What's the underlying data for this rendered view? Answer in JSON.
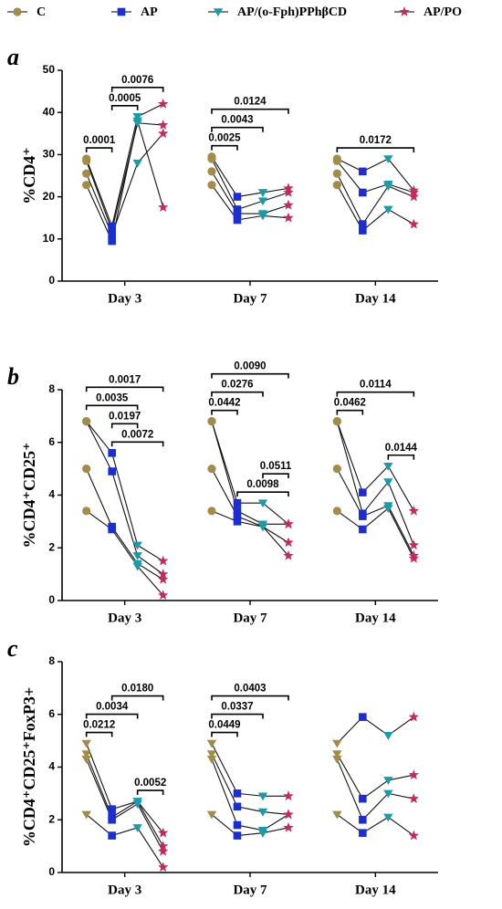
{
  "chart_data": [
    {
      "type": "dotplot",
      "panel_label": "a",
      "ylabel": "%CD4⁺",
      "categories": [
        "Day 3",
        "Day 7",
        "Day 14"
      ],
      "ylim": [
        0,
        50
      ],
      "yticks": [
        0,
        10,
        20,
        30,
        40,
        50
      ],
      "series": [
        {
          "name": "C",
          "color": "#a38b4a",
          "marker": "circle",
          "values": [
            [
              29,
              28.5,
              25.5,
              22.8
            ],
            [
              29.5,
              29,
              26,
              22.8
            ],
            [
              29,
              28.5,
              25.5,
              22.8
            ]
          ]
        },
        {
          "name": "AP",
          "color": "#1b2fd1",
          "marker": "square",
          "values": [
            [
              13,
              12,
              11,
              9.5
            ],
            [
              20,
              17,
              16,
              14.5
            ],
            [
              26,
              21,
              13.5,
              12
            ]
          ]
        },
        {
          "name": "AP/(o-Fph)PPhβCD",
          "color": "#1d9aa8",
          "marker": "triangle-down",
          "values": [
            [
              39,
              37.5,
              28,
              38
            ],
            [
              21,
              19,
              16,
              15.5
            ],
            [
              29,
              23,
              22.5,
              17
            ]
          ]
        },
        {
          "name": "AP/PO",
          "color": "#c42a5e",
          "marker": "star",
          "values": [
            [
              42,
              37,
              35,
              17.5
            ],
            [
              22,
              21,
              18,
              15
            ],
            [
              21.5,
              21,
              20,
              13.5
            ]
          ]
        }
      ],
      "annotations": [
        {
          "label": "0.0001",
          "category": "Day 3",
          "between": [
            "C",
            "AP"
          ]
        },
        {
          "label": "0.0005",
          "category": "Day 3",
          "between": [
            "AP",
            "AP/(o-Fph)PPhβCD"
          ]
        },
        {
          "label": "0.0076",
          "category": "Day 3",
          "between": [
            "AP",
            "AP/PO"
          ]
        },
        {
          "label": "0.0025",
          "category": "Day 7",
          "between": [
            "C",
            "AP"
          ]
        },
        {
          "label": "0.0043",
          "category": "Day 7",
          "between": [
            "C",
            "AP/(o-Fph)PPhβCD"
          ]
        },
        {
          "label": "0.0124",
          "category": "Day 7",
          "between": [
            "C",
            "AP/PO"
          ]
        },
        {
          "label": "0.0172",
          "category": "Day 14",
          "between": [
            "C",
            "AP/PO"
          ]
        }
      ]
    },
    {
      "type": "dotplot",
      "panel_label": "b",
      "ylabel": "%CD4⁺CD25⁺",
      "categories": [
        "Day 3",
        "Day 7",
        "Day 14"
      ],
      "ylim": [
        0,
        8
      ],
      "yticks": [
        0,
        2,
        4,
        6,
        8
      ],
      "series": [
        {
          "name": "C",
          "color": "#a38b4a",
          "marker": "circle",
          "values": [
            [
              6.8,
              6.8,
              5,
              3.4
            ],
            [
              6.8,
              6.8,
              5,
              3.4
            ],
            [
              6.8,
              6.8,
              5,
              3.4
            ]
          ]
        },
        {
          "name": "AP",
          "color": "#1b2fd1",
          "marker": "square",
          "values": [
            [
              5.6,
              4.9,
              2.8,
              2.7
            ],
            [
              3.7,
              3.4,
              3.2,
              3.0
            ],
            [
              4.1,
              3.3,
              3.2,
              2.7
            ]
          ]
        },
        {
          "name": "AP/(o-Fph)PPhβCD",
          "color": "#1d9aa8",
          "marker": "triangle-down",
          "values": [
            [
              2.1,
              1.7,
              1.4,
              1.3
            ],
            [
              3.7,
              2.9,
              2.8,
              2.8
            ],
            [
              5.1,
              4.5,
              3.6,
              3.5
            ]
          ]
        },
        {
          "name": "AP/PO",
          "color": "#c42a5e",
          "marker": "star",
          "values": [
            [
              1.5,
              1.0,
              0.8,
              0.2
            ],
            [
              2.9,
              2.9,
              2.2,
              1.7
            ],
            [
              3.4,
              2.1,
              1.7,
              1.6
            ]
          ]
        }
      ],
      "annotations": [
        {
          "label": "0.0072",
          "category": "Day 3",
          "between": [
            "AP",
            "AP/PO"
          ]
        },
        {
          "label": "0.0197",
          "category": "Day 3",
          "between": [
            "AP",
            "AP/(o-Fph)PPhβCD"
          ]
        },
        {
          "label": "0.0035",
          "category": "Day 3",
          "between": [
            "C",
            "AP/(o-Fph)PPhβCD"
          ]
        },
        {
          "label": "0.0017",
          "category": "Day 3",
          "between": [
            "C",
            "AP/PO"
          ]
        },
        {
          "label": "0.0098",
          "category": "Day 7",
          "between": [
            "AP",
            "AP/PO"
          ]
        },
        {
          "label": "0.0511",
          "category": "Day 7",
          "between": [
            "AP/(o-Fph)PPhβCD",
            "AP/PO"
          ]
        },
        {
          "label": "0.0442",
          "category": "Day 7",
          "between": [
            "C",
            "AP"
          ]
        },
        {
          "label": "0.0276",
          "category": "Day 7",
          "between": [
            "C",
            "AP/(o-Fph)PPhβCD"
          ]
        },
        {
          "label": "0.0090",
          "category": "Day 7",
          "between": [
            "C",
            "AP/PO"
          ]
        },
        {
          "label": "0.0144",
          "category": "Day 14",
          "between": [
            "AP/(o-Fph)PPhβCD",
            "AP/PO"
          ]
        },
        {
          "label": "0.0462",
          "category": "Day 14",
          "between": [
            "C",
            "AP"
          ]
        },
        {
          "label": "0.0114",
          "category": "Day 14",
          "between": [
            "C",
            "AP/PO"
          ]
        }
      ]
    },
    {
      "type": "dotplot",
      "panel_label": "c",
      "ylabel": "%CD4⁺CD25⁺FoxP3+",
      "categories": [
        "Day 3",
        "Day 7",
        "Day 14"
      ],
      "ylim": [
        0,
        8
      ],
      "yticks": [
        0,
        2,
        4,
        6,
        8
      ],
      "series": [
        {
          "name": "C",
          "color": "#a38b4a",
          "marker": "triangle-down",
          "values": [
            [
              4.9,
              4.5,
              4.3,
              2.2
            ],
            [
              4.9,
              4.5,
              4.3,
              2.2
            ],
            [
              4.9,
              4.5,
              4.3,
              2.2
            ]
          ]
        },
        {
          "name": "AP",
          "color": "#1b2fd1",
          "marker": "square",
          "values": [
            [
              2.4,
              2.1,
              2.0,
              1.4
            ],
            [
              3.0,
              2.5,
              1.8,
              1.4
            ],
            [
              5.9,
              2.8,
              2.0,
              1.5
            ]
          ]
        },
        {
          "name": "AP/(o-Fph)PPhβCD",
          "color": "#1d9aa8",
          "marker": "triangle-down",
          "values": [
            [
              2.7,
              2.7,
              2.6,
              1.7
            ],
            [
              2.9,
              2.3,
              1.6,
              1.5
            ],
            [
              5.2,
              3.5,
              3.0,
              2.1
            ]
          ]
        },
        {
          "name": "AP/PO",
          "color": "#c42a5e",
          "marker": "star",
          "values": [
            [
              1.5,
              1.0,
              0.8,
              0.2
            ],
            [
              2.9,
              2.2,
              2.2,
              1.7
            ],
            [
              5.9,
              3.7,
              2.8,
              1.4
            ]
          ]
        }
      ],
      "annotations": [
        {
          "label": "0.0052",
          "category": "Day 3",
          "between": [
            "AP/(o-Fph)PPhβCD",
            "AP/PO"
          ]
        },
        {
          "label": "0.0212",
          "category": "Day 3",
          "between": [
            "C",
            "AP"
          ]
        },
        {
          "label": "0.0034",
          "category": "Day 3",
          "between": [
            "C",
            "AP/(o-Fph)PPhβCD"
          ]
        },
        {
          "label": "0.0180",
          "category": "Day 3",
          "between": [
            "AP",
            "AP/PO"
          ]
        },
        {
          "label": "0.0449",
          "category": "Day 7",
          "between": [
            "C",
            "AP"
          ]
        },
        {
          "label": "0.0337",
          "category": "Day 7",
          "between": [
            "C",
            "AP/(o-Fph)PPhβCD"
          ]
        },
        {
          "label": "0.0403",
          "category": "Day 7",
          "between": [
            "C",
            "AP/PO"
          ]
        }
      ]
    }
  ]
}
